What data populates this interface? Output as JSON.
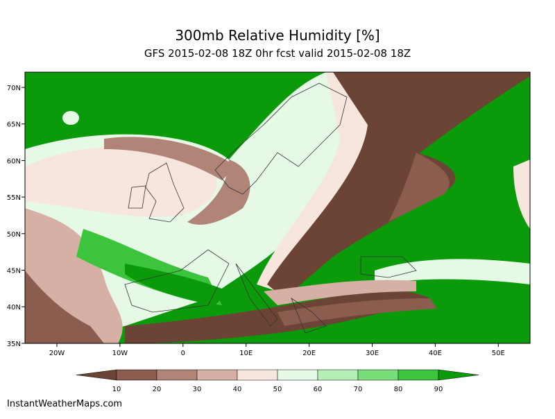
{
  "title": "300mb Relative Humidity [%]",
  "subtitle": "GFS 2015-02-08 18Z 0hr fcst valid 2015-02-08 18Z",
  "map": {
    "lon_labels": [
      "20W",
      "10W",
      "0",
      "10E",
      "20E",
      "30E",
      "40E",
      "50E"
    ],
    "lat_labels": [
      "70N",
      "65N",
      "60N",
      "55N",
      "50N",
      "45N",
      "40N",
      "35N"
    ]
  },
  "colorbar": {
    "labels": [
      10,
      20,
      30,
      40,
      50,
      60,
      70,
      80,
      90
    ],
    "colors": [
      "#6b4435",
      "#8a5d4f",
      "#b08578",
      "#d6b0a4",
      "#f6e6dd",
      "#e6f8e6",
      "#b6efb6",
      "#79de79",
      "#3cc43c",
      "#0a9a0a"
    ]
  },
  "footer": "InstantWeatherMaps.com"
}
